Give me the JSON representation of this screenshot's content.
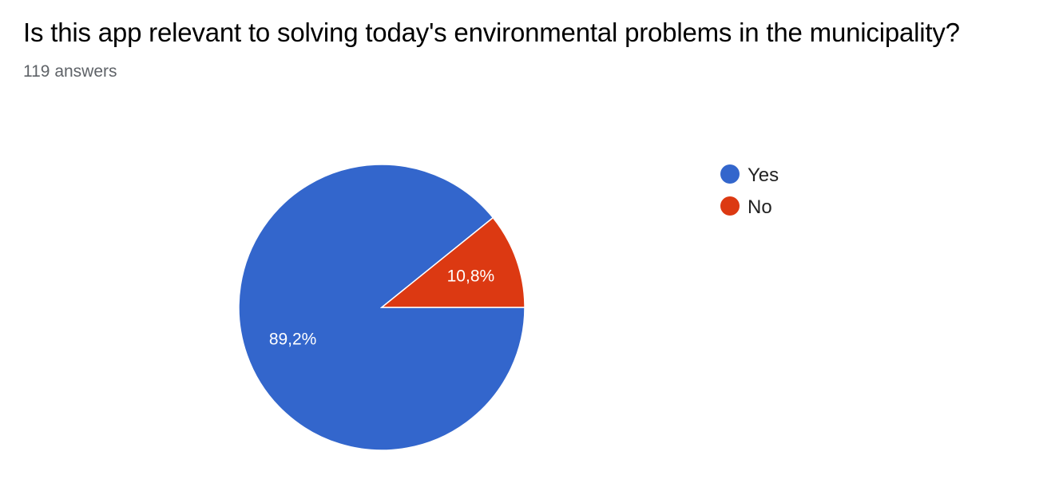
{
  "header": {
    "title": "Is this app relevant to solving today's environmental problems in the municipality?",
    "answers": "119 answers"
  },
  "chart_data": {
    "type": "pie",
    "title": "Is this app relevant to solving today's environmental problems in the municipality?",
    "subtitle": "119 answers",
    "slices": [
      {
        "name": "Yes",
        "value": 89.2,
        "label": "89,2%",
        "color": "#3366cc"
      },
      {
        "name": "No",
        "value": 10.8,
        "label": "10,8%",
        "color": "#dc3912"
      }
    ],
    "legend_position": "right"
  }
}
